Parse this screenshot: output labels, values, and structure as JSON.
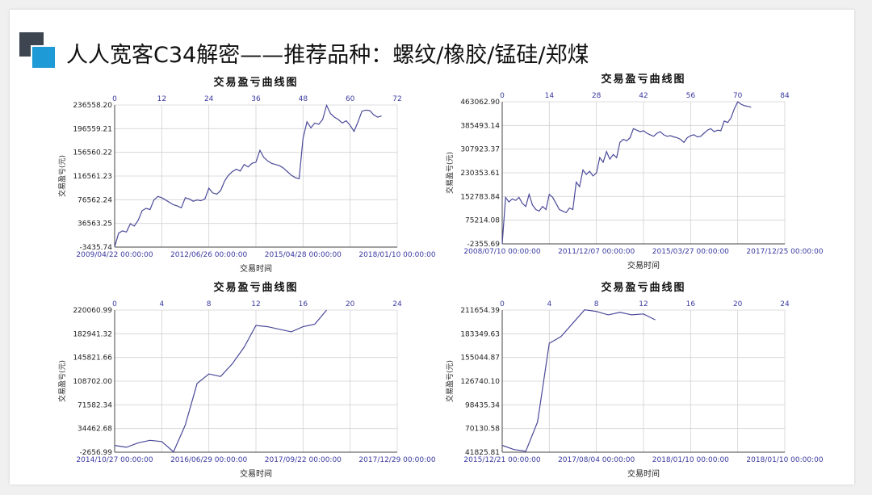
{
  "slide": {
    "title": "人人宽客C34解密——推荐品种：螺纹/橡胶/锰硅/郑煤"
  },
  "chart_data": [
    {
      "type": "line",
      "title": "交易盈亏曲线图",
      "xlabel": "交易时间",
      "ylabel": "交易盈亏(元)",
      "yticks": [
        "236558.20",
        "196559.21",
        "156560.22",
        "116561.23",
        "76562.24",
        "36563.25",
        "-3435.74"
      ],
      "ylim": [
        -3435.74,
        236558.2
      ],
      "top_ticks": [
        "0",
        "12",
        "24",
        "36",
        "48",
        "60",
        "72"
      ],
      "xlim": [
        0,
        72
      ],
      "date_ticks": [
        "2009/04/22 00:00:00",
        "2012/06/26 00:00:00",
        "2015/04/28 00:00:00",
        "2018/01/10 00:00:00"
      ],
      "grid": true,
      "series": [
        {
          "x": [
            0,
            1,
            2,
            3,
            4,
            5,
            6,
            7,
            8,
            9,
            10,
            11,
            12,
            13,
            14,
            15,
            16,
            17,
            18,
            19,
            20,
            21,
            22,
            23,
            24,
            25,
            26,
            27,
            28,
            29,
            30,
            31,
            32,
            33,
            34,
            35,
            36,
            37,
            38,
            39,
            40,
            41,
            42,
            43,
            44,
            45,
            46,
            47,
            48,
            49,
            50,
            51,
            52,
            53,
            54,
            55,
            56,
            57,
            58,
            59,
            60,
            61,
            62,
            63,
            64,
            65,
            66,
            67,
            68
          ],
          "values": [
            -3000,
            20000,
            24000,
            22000,
            36000,
            32000,
            42000,
            58000,
            62000,
            60000,
            76000,
            82000,
            80000,
            76000,
            72000,
            68000,
            66000,
            63000,
            80000,
            78000,
            74000,
            76000,
            75000,
            78000,
            96000,
            88000,
            86000,
            92000,
            108000,
            118000,
            124000,
            128000,
            125000,
            136000,
            132000,
            138000,
            140000,
            160000,
            148000,
            142000,
            138000,
            136000,
            134000,
            130000,
            124000,
            118000,
            114000,
            112000,
            180000,
            208000,
            198000,
            206000,
            204000,
            212000,
            236000,
            222000,
            216000,
            212000,
            206000,
            210000,
            202000,
            192000,
            208000,
            226000,
            228000,
            227000,
            220000,
            216000,
            218000
          ]
        }
      ]
    },
    {
      "type": "line",
      "title": "交易盈亏曲线图",
      "xlabel": "交易时间",
      "ylabel": "交易盈亏(元)",
      "yticks": [
        "463062.90",
        "385493.14",
        "307923.37",
        "230353.61",
        "152783.84",
        "75214.08",
        "-2355.69"
      ],
      "ylim": [
        -2355.69,
        463062.9
      ],
      "top_ticks": [
        "0",
        "14",
        "28",
        "42",
        "56",
        "70",
        "84"
      ],
      "xlim": [
        0,
        84
      ],
      "date_ticks": [
        "2008/07/10 00:00:00",
        "2011/12/07 00:00:00",
        "2015/03/27 00:00:00",
        "2017/12/25 00:00:00"
      ],
      "grid": true,
      "series": [
        {
          "x": [
            0,
            1,
            2,
            3,
            4,
            5,
            6,
            7,
            8,
            9,
            10,
            11,
            12,
            13,
            14,
            15,
            16,
            17,
            18,
            19,
            20,
            21,
            22,
            23,
            24,
            25,
            26,
            27,
            28,
            29,
            30,
            31,
            32,
            33,
            34,
            35,
            36,
            37,
            38,
            39,
            40,
            41,
            42,
            43,
            44,
            45,
            46,
            47,
            48,
            49,
            50,
            51,
            52,
            53,
            54,
            55,
            56,
            57,
            58,
            59,
            60,
            61,
            62,
            63,
            64,
            65,
            66,
            67,
            68,
            69,
            70,
            71,
            72,
            73,
            74
          ],
          "values": [
            -2000,
            150000,
            135000,
            145000,
            140000,
            150000,
            130000,
            120000,
            160000,
            125000,
            110000,
            105000,
            120000,
            110000,
            160000,
            150000,
            130000,
            110000,
            105000,
            100000,
            115000,
            110000,
            200000,
            185000,
            240000,
            225000,
            235000,
            220000,
            230000,
            280000,
            265000,
            300000,
            275000,
            290000,
            280000,
            330000,
            340000,
            335000,
            345000,
            375000,
            370000,
            365000,
            368000,
            360000,
            355000,
            350000,
            360000,
            365000,
            355000,
            350000,
            352000,
            348000,
            345000,
            340000,
            330000,
            345000,
            352000,
            355000,
            348000,
            350000,
            360000,
            370000,
            375000,
            365000,
            370000,
            368000,
            400000,
            395000,
            410000,
            440000,
            463000,
            455000,
            450000,
            448000,
            445000
          ]
        }
      ]
    },
    {
      "type": "line",
      "title": "交易盈亏曲线图",
      "xlabel": "交易时间",
      "ylabel": "交易盈亏(元)",
      "yticks": [
        "220060.99",
        "182941.32",
        "145821.66",
        "108702.00",
        "71582.34",
        "34462.68",
        "-2656.99"
      ],
      "ylim": [
        -2656.99,
        220060.99
      ],
      "top_ticks": [
        "0",
        "4",
        "8",
        "12",
        "16",
        "20",
        "24"
      ],
      "xlim": [
        0,
        24
      ],
      "date_ticks": [
        "2014/10/27 00:00:00",
        "2016/06/29 00:00:00",
        "2017/09/22 00:00:00",
        "2017/12/29 00:00:00"
      ],
      "grid": true,
      "series": [
        {
          "x": [
            0,
            1,
            2,
            3,
            4,
            5,
            6,
            7,
            8,
            9,
            10,
            11,
            12,
            13,
            14,
            15,
            16,
            17,
            18
          ],
          "values": [
            8000,
            5000,
            12000,
            16000,
            14000,
            -2000,
            40000,
            105000,
            120000,
            116000,
            136000,
            162000,
            196000,
            194000,
            190000,
            186000,
            194000,
            198000,
            220000
          ]
        }
      ]
    },
    {
      "type": "line",
      "title": "交易盈亏曲线图",
      "xlabel": "交易时间",
      "ylabel": "交易盈亏(元)",
      "yticks": [
        "211654.39",
        "183349.63",
        "155044.87",
        "126740.10",
        "98435.34",
        "70130.58",
        "41825.81"
      ],
      "ylim": [
        41825.81,
        211654.39
      ],
      "top_ticks": [
        "0",
        "4",
        "8",
        "12",
        "16",
        "20",
        "24"
      ],
      "xlim": [
        0,
        24
      ],
      "date_ticks": [
        "2015/12/21 00:00:00",
        "2017/08/04 00:00:00",
        "2018/01/10 00:00:00",
        "2018/01/10 00:00:00"
      ],
      "grid": true,
      "series": [
        {
          "x": [
            0,
            1,
            2,
            3,
            4,
            5,
            6,
            7,
            8,
            9,
            10,
            11,
            12,
            13
          ],
          "values": [
            50000,
            45000,
            43000,
            78000,
            172000,
            180000,
            196000,
            212000,
            210000,
            206000,
            209000,
            206000,
            207000,
            200000
          ]
        }
      ]
    }
  ]
}
